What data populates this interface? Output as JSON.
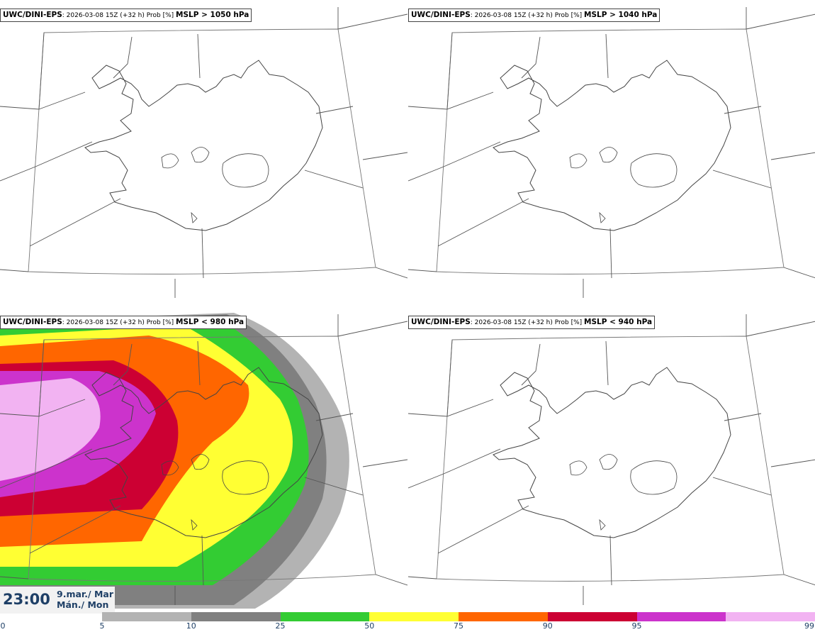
{
  "panels": [
    {
      "model": "UWC/DINI-EPS",
      "run": ": 2026-03-08 15Z (+32 h) Prob [%] ",
      "metric": "MSLP > 1050 hPa"
    },
    {
      "model": "UWC/DINI-EPS",
      "run": ": 2026-03-08 15Z (+32 h) Prob [%] ",
      "metric": "MSLP > 1040 hPa"
    },
    {
      "model": "UWC/DINI-EPS",
      "run": ": 2026-03-08 15Z (+32 h) Prob [%] ",
      "metric": "MSLP < 980 hPa"
    },
    {
      "model": "UWC/DINI-EPS",
      "run": ": 2026-03-08 15Z (+32 h) Prob [%] ",
      "metric": "MSLP < 940 hPa"
    }
  ],
  "time": {
    "clock": "23:00",
    "date_line1": "9.mar./ Mar",
    "date_line2": "Mán./ Mon"
  },
  "colorbar": {
    "ticks": [
      "0",
      "5",
      "10",
      "25",
      "50",
      "75",
      "90",
      "95",
      "99"
    ],
    "colors": [
      "#b3b3b3",
      "#808080",
      "#33cc33",
      "#ffff33",
      "#ff6600",
      "#cc0033",
      "#cc33cc",
      "#f2b3f2"
    ]
  }
}
